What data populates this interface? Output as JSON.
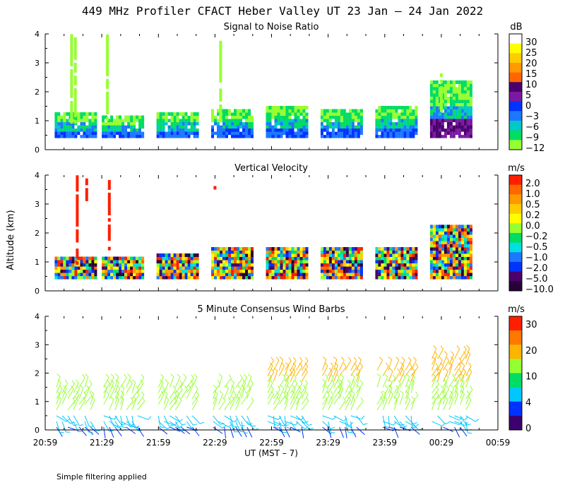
{
  "title": "449 MHz Profiler CFACT Heber Valley UT 23 Jan – 24 Jan 2022",
  "ylabel": "Altitude (km)",
  "xlabel": "UT  (MST – 7)",
  "footer": "Simple filtering applied",
  "x_ticks": [
    "20:59",
    "21:29",
    "21:59",
    "22:29",
    "22:59",
    "23:29",
    "23:59",
    "00:29",
    "00:59"
  ],
  "chart_data": [
    {
      "type": "heatmap",
      "title": "Signal to Noise Ratio",
      "ylabel": "Altitude (km)",
      "ylim": [
        0,
        4
      ],
      "y_ticks": [
        "0",
        "1",
        "2",
        "3",
        "4"
      ],
      "colorbar": {
        "unit": "dB",
        "labels": [
          "30",
          "25",
          "20",
          "15",
          "10",
          "5",
          "0",
          "−3",
          "−6",
          "−9",
          "−12"
        ],
        "colors": [
          "#ffffff",
          "#ffff00",
          "#ffcc00",
          "#ff9900",
          "#ff6600",
          "#4b006e",
          "#7a1aa0",
          "#0033ff",
          "#1e78ff",
          "#00c8c8",
          "#00dc64",
          "#96ff32"
        ]
      },
      "segments": [
        {
          "start_min": 5,
          "end_min": 26,
          "top_km": 1.2
        },
        {
          "start_min": 30,
          "end_min": 52,
          "top_km": 1.1
        },
        {
          "start_min": 59,
          "end_min": 81,
          "top_km": 1.25
        },
        {
          "start_min": 88,
          "end_min": 110,
          "top_km": 1.3
        },
        {
          "start_min": 117,
          "end_min": 139,
          "top_km": 1.45
        },
        {
          "start_min": 146,
          "end_min": 168,
          "top_km": 1.35
        },
        {
          "start_min": 175,
          "end_min": 197,
          "top_km": 1.45
        },
        {
          "start_min": 204,
          "end_min": 226,
          "top_km": 2.3
        }
      ]
    },
    {
      "type": "heatmap",
      "title": "Vertical Velocity",
      "ylabel": "Altitude (km)",
      "ylim": [
        0,
        4
      ],
      "y_ticks": [
        "0",
        "1",
        "2",
        "3",
        "4"
      ],
      "colorbar": {
        "unit": "m/s",
        "labels": [
          "2.0",
          "1.0",
          "0.5",
          "0.2",
          "0.0",
          "−0.2",
          "−0.5",
          "−1.0",
          "−2.0",
          "−5.0",
          "−10.0"
        ],
        "colors": [
          "#ff1e00",
          "#ff6600",
          "#ff9900",
          "#ffcc00",
          "#ffff00",
          "#96ff32",
          "#00dc64",
          "#00e0e0",
          "#1e78ff",
          "#0033ff",
          "#4b006e",
          "#2a0038"
        ]
      },
      "segments": [
        {
          "start_min": 5,
          "end_min": 26,
          "top_km": 1.1
        },
        {
          "start_min": 30,
          "end_min": 52,
          "top_km": 1.1
        },
        {
          "start_min": 59,
          "end_min": 81,
          "top_km": 1.2
        },
        {
          "start_min": 88,
          "end_min": 110,
          "top_km": 1.5
        },
        {
          "start_min": 117,
          "end_min": 139,
          "top_km": 1.45
        },
        {
          "start_min": 146,
          "end_min": 168,
          "top_km": 1.5
        },
        {
          "start_min": 175,
          "end_min": 197,
          "top_km": 1.5
        },
        {
          "start_min": 204,
          "end_min": 226,
          "top_km": 2.2
        }
      ]
    },
    {
      "type": "scatter",
      "title": "5 Minute Consensus Wind Barbs",
      "ylabel": "Altitude (km)",
      "ylim": [
        0,
        4
      ],
      "y_ticks": [
        "0",
        "1",
        "2",
        "3",
        "4"
      ],
      "colorbar": {
        "unit": "m/s",
        "labels": [
          "30",
          "20",
          "10",
          "4",
          "0"
        ],
        "colors": [
          "#ff1e00",
          "#ff7800",
          "#ffb400",
          "#96ff32",
          "#00dc64",
          "#00c8ff",
          "#0033ff",
          "#3c0070"
        ]
      },
      "wind_speed_by_altitude_m_s": [
        {
          "alt_km": 0.2,
          "speed": 2
        },
        {
          "alt_km": 0.6,
          "speed": 6
        },
        {
          "alt_km": 1.0,
          "speed": 12
        },
        {
          "alt_km": 1.5,
          "speed": 15
        },
        {
          "alt_km": 2.0,
          "speed": 20
        },
        {
          "alt_km": 2.5,
          "speed": 22
        }
      ],
      "groups_start_min": [
        5,
        30,
        59,
        88,
        117,
        146,
        175,
        204
      ]
    }
  ]
}
